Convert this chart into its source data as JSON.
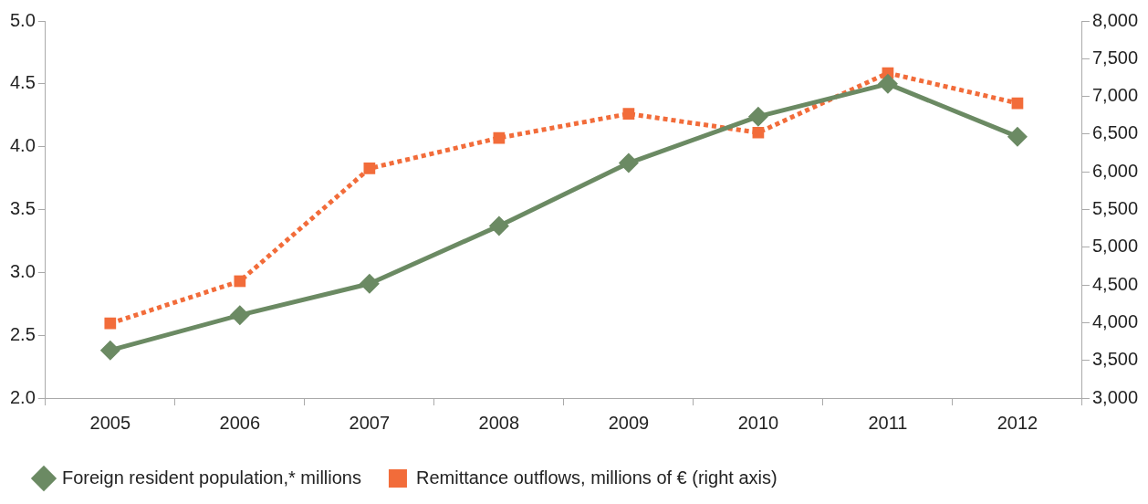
{
  "chart_data": {
    "type": "line",
    "categories": [
      "2005",
      "2006",
      "2007",
      "2008",
      "2009",
      "2010",
      "2011",
      "2012"
    ],
    "series": [
      {
        "name": "Foreign resident population,* millions",
        "color": "#6b8a63",
        "values": [
          2.38,
          2.66,
          2.91,
          3.37,
          3.87,
          4.24,
          4.5,
          4.08
        ],
        "marker": "diamond",
        "line_style": "solid"
      },
      {
        "name": "Remittance outflows, millions of € (right axis)",
        "color": "#f26c3a",
        "values": [
          3990,
          4550,
          6045,
          6450,
          6770,
          6520,
          7310,
          6910
        ],
        "axis": "y2",
        "marker": "square",
        "line_style": "dotted"
      }
    ],
    "ylim": [
      2,
      5
    ],
    "yticks": [
      {
        "value": 2,
        "label": "2.0"
      },
      {
        "value": 2.5,
        "label": "2.5"
      },
      {
        "value": 3,
        "label": "3.0"
      },
      {
        "value": 3.5,
        "label": "3.5"
      },
      {
        "value": 4,
        "label": "4.0"
      },
      {
        "value": 4.5,
        "label": "4.5"
      },
      {
        "value": 5,
        "label": "5.0"
      }
    ],
    "y2lim": [
      3000,
      8000
    ],
    "y2ticks": [
      {
        "value": 3000,
        "label": "3,000"
      },
      {
        "value": 3500,
        "label": "3,500"
      },
      {
        "value": 4000,
        "label": "4,000"
      },
      {
        "value": 4500,
        "label": "4,500"
      },
      {
        "value": 5000,
        "label": "5,000"
      },
      {
        "value": 5500,
        "label": "5,500"
      },
      {
        "value": 6000,
        "label": "6,000"
      },
      {
        "value": 6500,
        "label": "6,500"
      },
      {
        "value": 7000,
        "label": "7,000"
      },
      {
        "value": 7500,
        "label": "7,500"
      },
      {
        "value": 8000,
        "label": "8,000"
      }
    ],
    "grid": false,
    "legend": "bottom left"
  }
}
